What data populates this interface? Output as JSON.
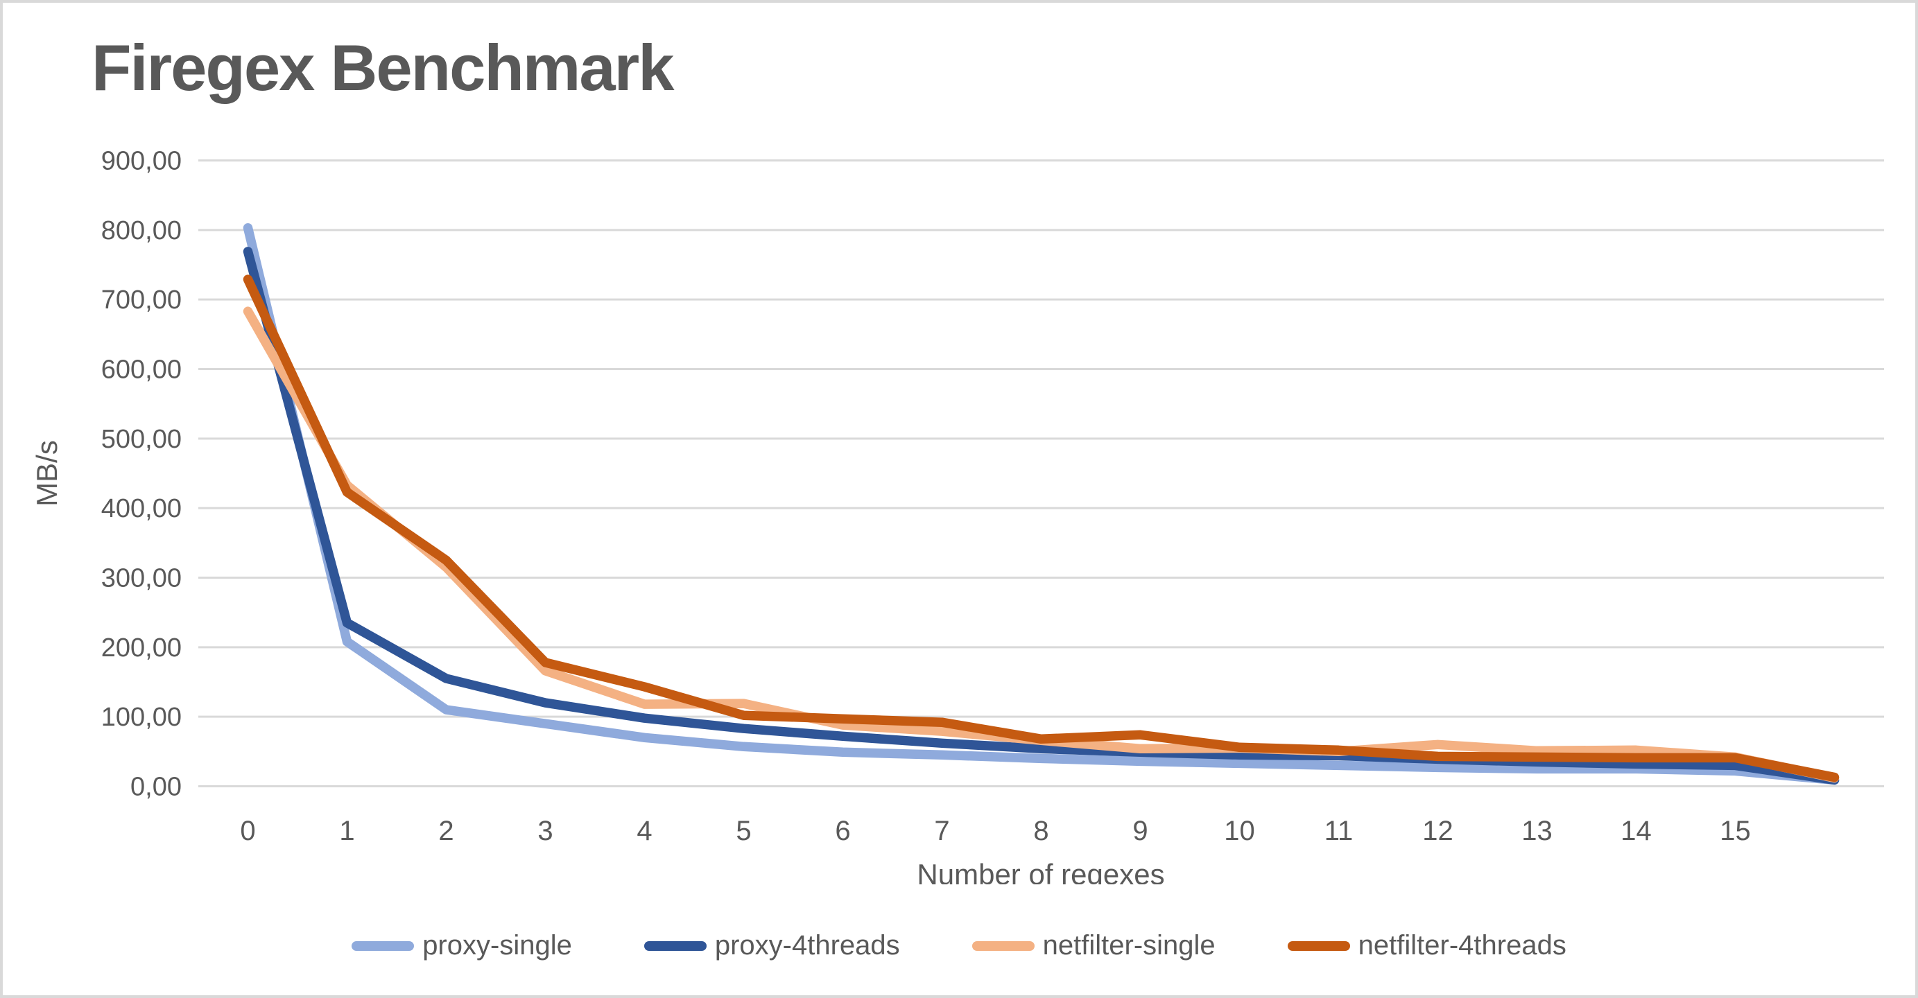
{
  "title": "Firegex Benchmark",
  "colors": {
    "text": "#595959",
    "grid": "#d9d9d9",
    "frame": "#d9d9d9",
    "background": "#ffffff"
  },
  "chart_data": {
    "type": "line",
    "title": "Firegex Benchmark",
    "xlabel": "Number of regexes",
    "ylabel": "MB/s",
    "ylim": [
      0,
      900
    ],
    "y_tick_step": 100,
    "y_tick_labels": [
      "0,00",
      "100,00",
      "200,00",
      "300,00",
      "400,00",
      "500,00",
      "600,00",
      "700,00",
      "800,00",
      "900,00"
    ],
    "x": [
      0,
      1,
      2,
      3,
      4,
      5,
      6,
      7,
      8,
      9,
      10,
      11,
      12,
      13,
      14,
      15,
      16
    ],
    "x_tick_labels": [
      "0",
      "1",
      "2",
      "3",
      "4",
      "5",
      "6",
      "7",
      "8",
      "9",
      "10",
      "11",
      "12",
      "13",
      "14",
      "15"
    ],
    "grid": "horizontal",
    "legend_position": "bottom",
    "series": [
      {
        "name": "proxy-single",
        "color": "#8FAADC",
        "values": [
          803,
          208,
          110,
          90,
          70,
          57,
          49,
          45,
          40,
          36,
          33,
          30,
          27,
          25,
          25,
          22,
          9
        ]
      },
      {
        "name": "proxy-4threads",
        "color": "#2F5597",
        "values": [
          769,
          235,
          155,
          120,
          98,
          83,
          72,
          62,
          54,
          49,
          45,
          44,
          39,
          35,
          32,
          30,
          9
        ]
      },
      {
        "name": "netfilter-single",
        "color": "#F4B183",
        "values": [
          683,
          433,
          315,
          166,
          118,
          119,
          88,
          79,
          66,
          54,
          55,
          50,
          60,
          51,
          52,
          42,
          12
        ]
      },
      {
        "name": "netfilter-4threads",
        "color": "#C55A11",
        "values": [
          729,
          423,
          325,
          178,
          143,
          102,
          97,
          92,
          68,
          74,
          56,
          52,
          43,
          42,
          41,
          41,
          13
        ]
      }
    ]
  }
}
